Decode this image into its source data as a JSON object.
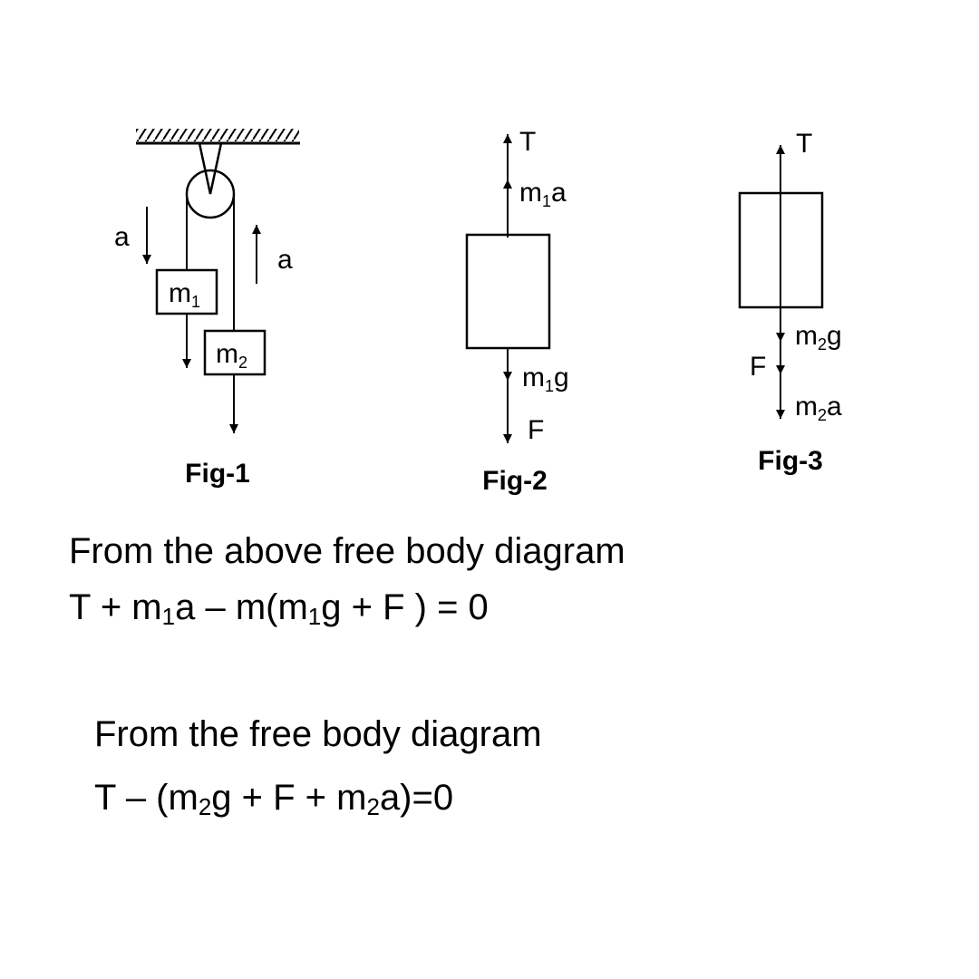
{
  "fig1": {
    "caption": "Fig-1",
    "accel_left": "a",
    "accel_right": "a",
    "mass1": {
      "base": "m",
      "sub": "1"
    },
    "mass2": {
      "base": "m",
      "sub": "2"
    }
  },
  "fig2": {
    "caption": "Fig-2",
    "tension": "T",
    "inertia": {
      "base": "m",
      "sub": "1",
      "tail": "a"
    },
    "weight": {
      "base": "m",
      "sub": "1",
      "tail": "g"
    },
    "force": "F"
  },
  "fig3": {
    "caption": "Fig-3",
    "tension": "T",
    "weight": {
      "base": "m",
      "sub": "2",
      "tail": "g"
    },
    "force": "F",
    "inertia": {
      "base": "m",
      "sub": "2",
      "tail": "a"
    }
  },
  "text": {
    "line1": "From the above free body diagram",
    "eq1": {
      "a": "T + m",
      "sub1": "1",
      "b": "a – m(m",
      "sub2": "1",
      "c": "g + F ) = 0"
    },
    "line2": "From the free body diagram",
    "eq2": {
      "a": "T – (m",
      "sub1": "2",
      "b": "g + F + m",
      "sub2": "2",
      "c": "a)=0"
    }
  }
}
